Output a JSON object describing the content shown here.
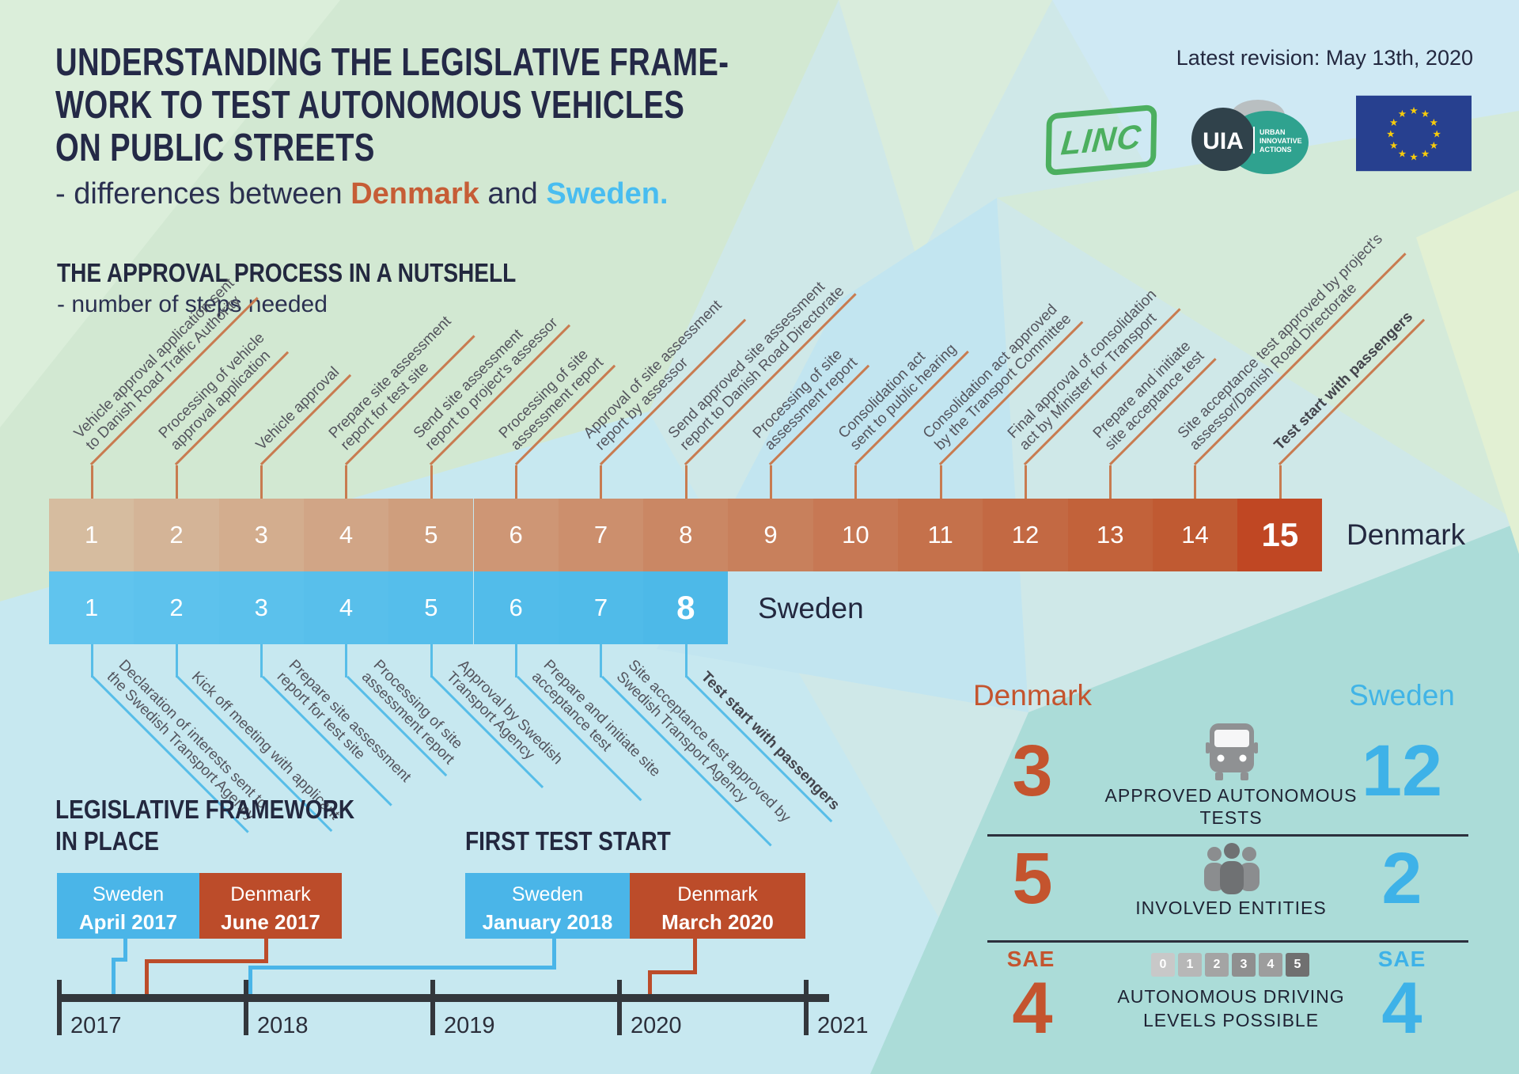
{
  "meta": {
    "revision": "Latest revision: May 13th, 2020"
  },
  "title": {
    "lines": [
      "UNDERSTANDING THE LEGISLATIVE FRAME-",
      "WORK TO TEST AUTONOMOUS VEHICLES",
      "ON PUBLIC STREETS"
    ],
    "subtitle_prefix": "- differences between ",
    "subtitle_denmark": "Denmark",
    "subtitle_and": " and ",
    "subtitle_sweden": "Sweden."
  },
  "logos": {
    "linc": "LINC",
    "uia_abbr": "UIA",
    "uia_words": [
      "URBAN",
      "INNOVATIVE",
      "ACTIONS"
    ]
  },
  "process": {
    "heading": "THE APPROVAL PROCESS IN A NUTSHELL",
    "subheading": "- number of steps needed",
    "denmark": {
      "label": "Denmark",
      "steps": [
        {
          "n": "1",
          "lines": [
            "Vehicle approval application sent",
            "to Danish Road Traffic Authority"
          ]
        },
        {
          "n": "2",
          "lines": [
            "Processing of vehicle",
            "approval application"
          ]
        },
        {
          "n": "3",
          "lines": [
            "Vehicle approval"
          ]
        },
        {
          "n": "4",
          "lines": [
            "Prepare site assessment",
            "report for test site"
          ]
        },
        {
          "n": "5",
          "lines": [
            "Send site assessment",
            "report to project's assessor"
          ]
        },
        {
          "n": "6",
          "lines": [
            "Processing of site",
            "assessment report"
          ]
        },
        {
          "n": "7",
          "lines": [
            "Approval of site assessment",
            "report by assessor"
          ]
        },
        {
          "n": "8",
          "lines": [
            "Send approved site assessment",
            "report to Danish Road Directorate"
          ]
        },
        {
          "n": "9",
          "lines": [
            "Processing of site",
            "assessment report"
          ]
        },
        {
          "n": "10",
          "lines": [
            "Consolidation act",
            "sent to public hearing"
          ]
        },
        {
          "n": "11",
          "lines": [
            "Consolidation act approved",
            "by the Transport Committee"
          ]
        },
        {
          "n": "12",
          "lines": [
            "Final approval of consolidation",
            "act by Minister for Transport"
          ]
        },
        {
          "n": "13",
          "lines": [
            "Prepare and initiate",
            "site acceptance test"
          ]
        },
        {
          "n": "14",
          "lines": [
            "Site acceptance test approved by project's",
            "assessor/Danish Road Directorate"
          ]
        },
        {
          "n": "15",
          "lines": [
            "Test start with passengers"
          ],
          "bold": true,
          "final": true
        }
      ]
    },
    "sweden": {
      "label": "Sweden",
      "steps": [
        {
          "n": "1",
          "lines": [
            "Declaration of interests sent to",
            "the Swedish Transport Agency"
          ]
        },
        {
          "n": "2",
          "lines": [
            "Kick off meeting with applicant"
          ]
        },
        {
          "n": "3",
          "lines": [
            "Prepare site assessment",
            "report for test site"
          ]
        },
        {
          "n": "4",
          "lines": [
            "Processing of site",
            "assessment report"
          ]
        },
        {
          "n": "5",
          "lines": [
            "Approval by Swedish",
            "Transport Agency"
          ]
        },
        {
          "n": "6",
          "lines": [
            "Prepare and initiate site",
            "acceptance test"
          ]
        },
        {
          "n": "7",
          "lines": [
            "Site acceptance test approved by",
            "Swedish Transport Agency"
          ]
        },
        {
          "n": "8",
          "lines": [
            "Test start with passengers"
          ],
          "bold": true,
          "final": true
        }
      ]
    }
  },
  "legislative": {
    "heading_line1": "LEGISLATIVE FRAMEWORK",
    "heading_line2": "IN PLACE",
    "first_test_heading": "FIRST TEST START",
    "events": [
      {
        "country": "Sweden",
        "date": "April 2017",
        "color": "blue"
      },
      {
        "country": "Denmark",
        "date": "June 2017",
        "color": "red"
      },
      {
        "country": "Sweden",
        "date": "January 2018",
        "color": "blue"
      },
      {
        "country": "Denmark",
        "date": "March 2020",
        "color": "red"
      }
    ],
    "years": [
      "2017",
      "2018",
      "2019",
      "2020",
      "2021"
    ]
  },
  "stats": {
    "denmark_header": "Denmark",
    "sweden_header": "Sweden",
    "rows": [
      {
        "dk": "3",
        "se": "12",
        "icon": "bus-icon",
        "label_lines": [
          "APPROVED AUTONOMOUS",
          "TESTS"
        ]
      },
      {
        "dk": "5",
        "se": "2",
        "icon": "people-icon",
        "label_lines": [
          "INVOLVED ENTITIES"
        ]
      },
      {
        "dk": "4",
        "se": "4",
        "dk_prefix": "SAE",
        "se_prefix": "SAE",
        "icon": "levels-chips",
        "levels": [
          "0",
          "1",
          "2",
          "3",
          "4",
          "5"
        ],
        "label_lines": [
          "AUTONOMOUS DRIVING",
          "LEVELS POSSIBLE"
        ]
      }
    ]
  },
  "colors": {
    "navy": "#262b49",
    "denmark_accent": "#c4542e",
    "sweden_accent": "#45b8e8",
    "denmark_bar_start": "#d6bc9f",
    "denmark_bar_end": "#c05a32",
    "denmark_bar_final": "#c04723",
    "sweden_bar": "#55c0ec",
    "event_blue": "#4ab5e8",
    "event_red": "#bc4c2a",
    "axis": "#33373c",
    "chip_grays": [
      "#c8c8c8",
      "#b7b7b7",
      "#a4a4a4",
      "#8f8f8f",
      "#9d9d9d",
      "#707070"
    ]
  }
}
